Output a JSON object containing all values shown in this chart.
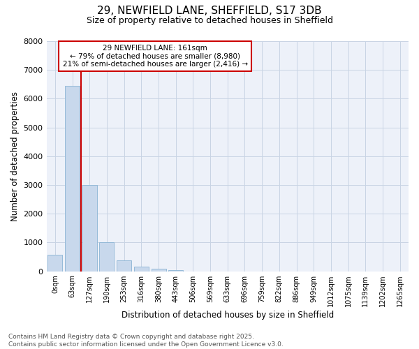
{
  "title_line1": "29, NEWFIELD LANE, SHEFFIELD, S17 3DB",
  "title_line2": "Size of property relative to detached houses in Sheffield",
  "xlabel": "Distribution of detached houses by size in Sheffield",
  "ylabel": "Number of detached properties",
  "bar_labels": [
    "0sqm",
    "63sqm",
    "127sqm",
    "190sqm",
    "253sqm",
    "316sqm",
    "380sqm",
    "443sqm",
    "506sqm",
    "569sqm",
    "633sqm",
    "696sqm",
    "759sqm",
    "822sqm",
    "886sqm",
    "949sqm",
    "1012sqm",
    "1075sqm",
    "1139sqm",
    "1202sqm",
    "1265sqm"
  ],
  "bar_values": [
    580,
    6450,
    3000,
    1000,
    370,
    160,
    90,
    50,
    0,
    0,
    0,
    0,
    0,
    0,
    0,
    0,
    0,
    0,
    0,
    0,
    0
  ],
  "bar_color": "#c8d8ec",
  "bar_edgecolor": "#8ab4d4",
  "ylim": [
    0,
    8000
  ],
  "yticks": [
    0,
    1000,
    2000,
    3000,
    4000,
    5000,
    6000,
    7000,
    8000
  ],
  "vline_x": 1.5,
  "vline_color": "#cc0000",
  "annotation_text": "29 NEWFIELD LANE: 161sqm\n← 79% of detached houses are smaller (8,980)\n21% of semi-detached houses are larger (2,416) →",
  "annotation_box_edgecolor": "#cc0000",
  "grid_color": "#c8d4e4",
  "background_color": "#edf1f9",
  "footer_line1": "Contains HM Land Registry data © Crown copyright and database right 2025.",
  "footer_line2": "Contains public sector information licensed under the Open Government Licence v3.0.",
  "title_fontsize": 11,
  "subtitle_fontsize": 9,
  "axis_label_fontsize": 8.5,
  "tick_fontsize": 7,
  "annotation_fontsize": 7.5,
  "footer_fontsize": 6.5
}
